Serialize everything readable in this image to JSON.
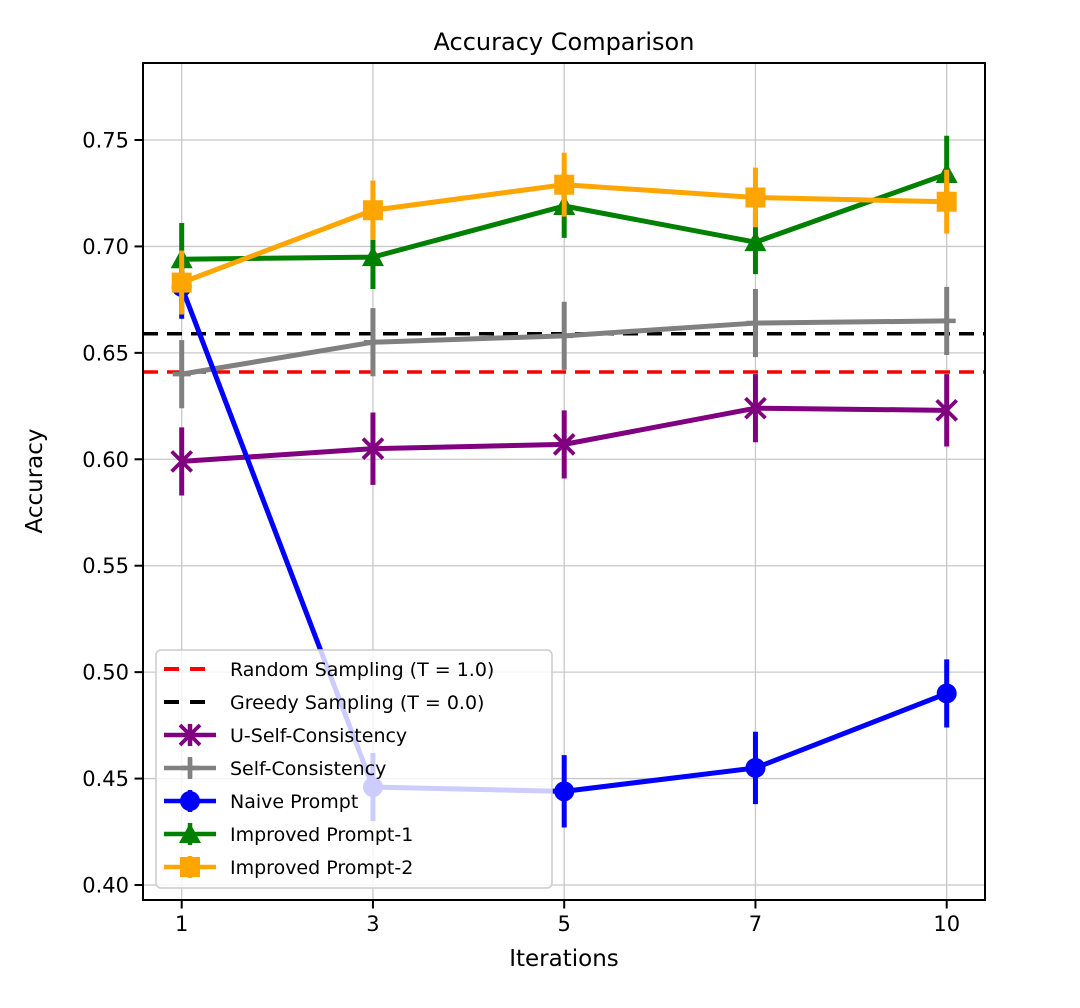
{
  "chart_data": {
    "type": "line",
    "title": "Accuracy Comparison",
    "xlabel": "Iterations",
    "ylabel": "Accuracy",
    "x_tick_labels": [
      "1",
      "3",
      "5",
      "7",
      "10"
    ],
    "y_tick_labels": [
      "0.40",
      "0.45",
      "0.50",
      "0.55",
      "0.60",
      "0.65",
      "0.70",
      "0.75"
    ],
    "y_ticks": [
      0.4,
      0.45,
      0.5,
      0.55,
      0.6,
      0.65,
      0.7,
      0.75
    ],
    "ylim": [
      0.393,
      0.786
    ],
    "grid": true,
    "legend_position": "lower left",
    "hlines": [
      {
        "name": "Random Sampling (T = 1.0)",
        "value": 0.641,
        "color": "#ff0000",
        "style": "dashed"
      },
      {
        "name": "Greedy Sampling (T = 0.0)",
        "value": 0.659,
        "color": "#000000",
        "style": "dashed"
      }
    ],
    "series": [
      {
        "name": "U-Self-Consistency",
        "color": "#800080",
        "marker": "x",
        "values": [
          0.599,
          0.605,
          0.607,
          0.624,
          0.623
        ],
        "errors": [
          0.016,
          0.017,
          0.016,
          0.016,
          0.017
        ]
      },
      {
        "name": "Self-Consistency",
        "color": "#808080",
        "marker": "plus",
        "values": [
          0.64,
          0.655,
          0.658,
          0.664,
          0.665
        ],
        "errors": [
          0.016,
          0.016,
          0.016,
          0.016,
          0.016
        ]
      },
      {
        "name": "Naive Prompt",
        "color": "#0000ff",
        "marker": "circle",
        "values": [
          0.681,
          0.446,
          0.444,
          0.455,
          0.49
        ],
        "errors": [
          0.015,
          0.016,
          0.017,
          0.017,
          0.016
        ]
      },
      {
        "name": "Improved Prompt-1",
        "color": "#008000",
        "marker": "triangle",
        "values": [
          0.694,
          0.695,
          0.719,
          0.702,
          0.734
        ],
        "errors": [
          0.017,
          0.015,
          0.015,
          0.015,
          0.018
        ]
      },
      {
        "name": "Improved Prompt-2",
        "color": "#ffa500",
        "marker": "square",
        "values": [
          0.683,
          0.717,
          0.729,
          0.723,
          0.721
        ],
        "errors": [
          0.015,
          0.014,
          0.015,
          0.014,
          0.015
        ]
      }
    ],
    "legend_order": [
      "Random Sampling (T = 1.0)",
      "Greedy Sampling (T = 0.0)",
      "U-Self-Consistency",
      "Self-Consistency",
      "Naive Prompt",
      "Improved Prompt-1",
      "Improved Prompt-2"
    ],
    "style": {
      "grid_color": "#c8c8c8",
      "spine_color": "#000000",
      "legend_border_color": "#cccccc",
      "legend_bg_alpha": 0.8
    }
  }
}
